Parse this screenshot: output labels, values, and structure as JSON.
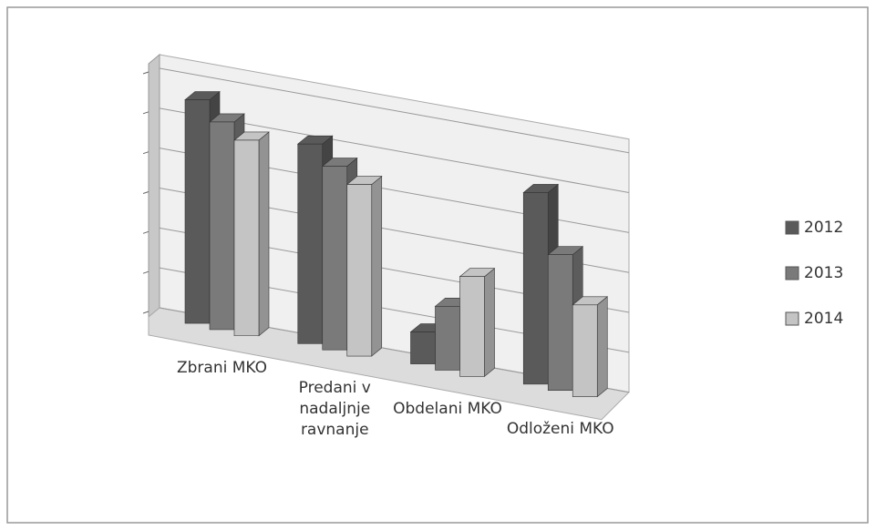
{
  "chart_data": {
    "type": "bar3d",
    "categories": [
      "Zbrani MKO",
      "Predani v nadaljnje ravnanje",
      "Obdelani MKO",
      "Odloženi MKO"
    ],
    "series": [
      {
        "name": "2012",
        "color": "#5a5a5a",
        "values": [
          5.6,
          5.0,
          0.8,
          4.8
        ]
      },
      {
        "name": "2013",
        "color": "#7a7a7a",
        "values": [
          5.2,
          4.6,
          1.6,
          3.4
        ]
      },
      {
        "name": "2014",
        "color": "#c4c4c4",
        "values": [
          4.9,
          4.3,
          2.5,
          2.3
        ]
      }
    ],
    "ylim": [
      0,
      6
    ],
    "yticks": [
      0,
      1,
      2,
      3,
      4,
      5,
      6
    ],
    "grid": true,
    "legend": "right"
  }
}
